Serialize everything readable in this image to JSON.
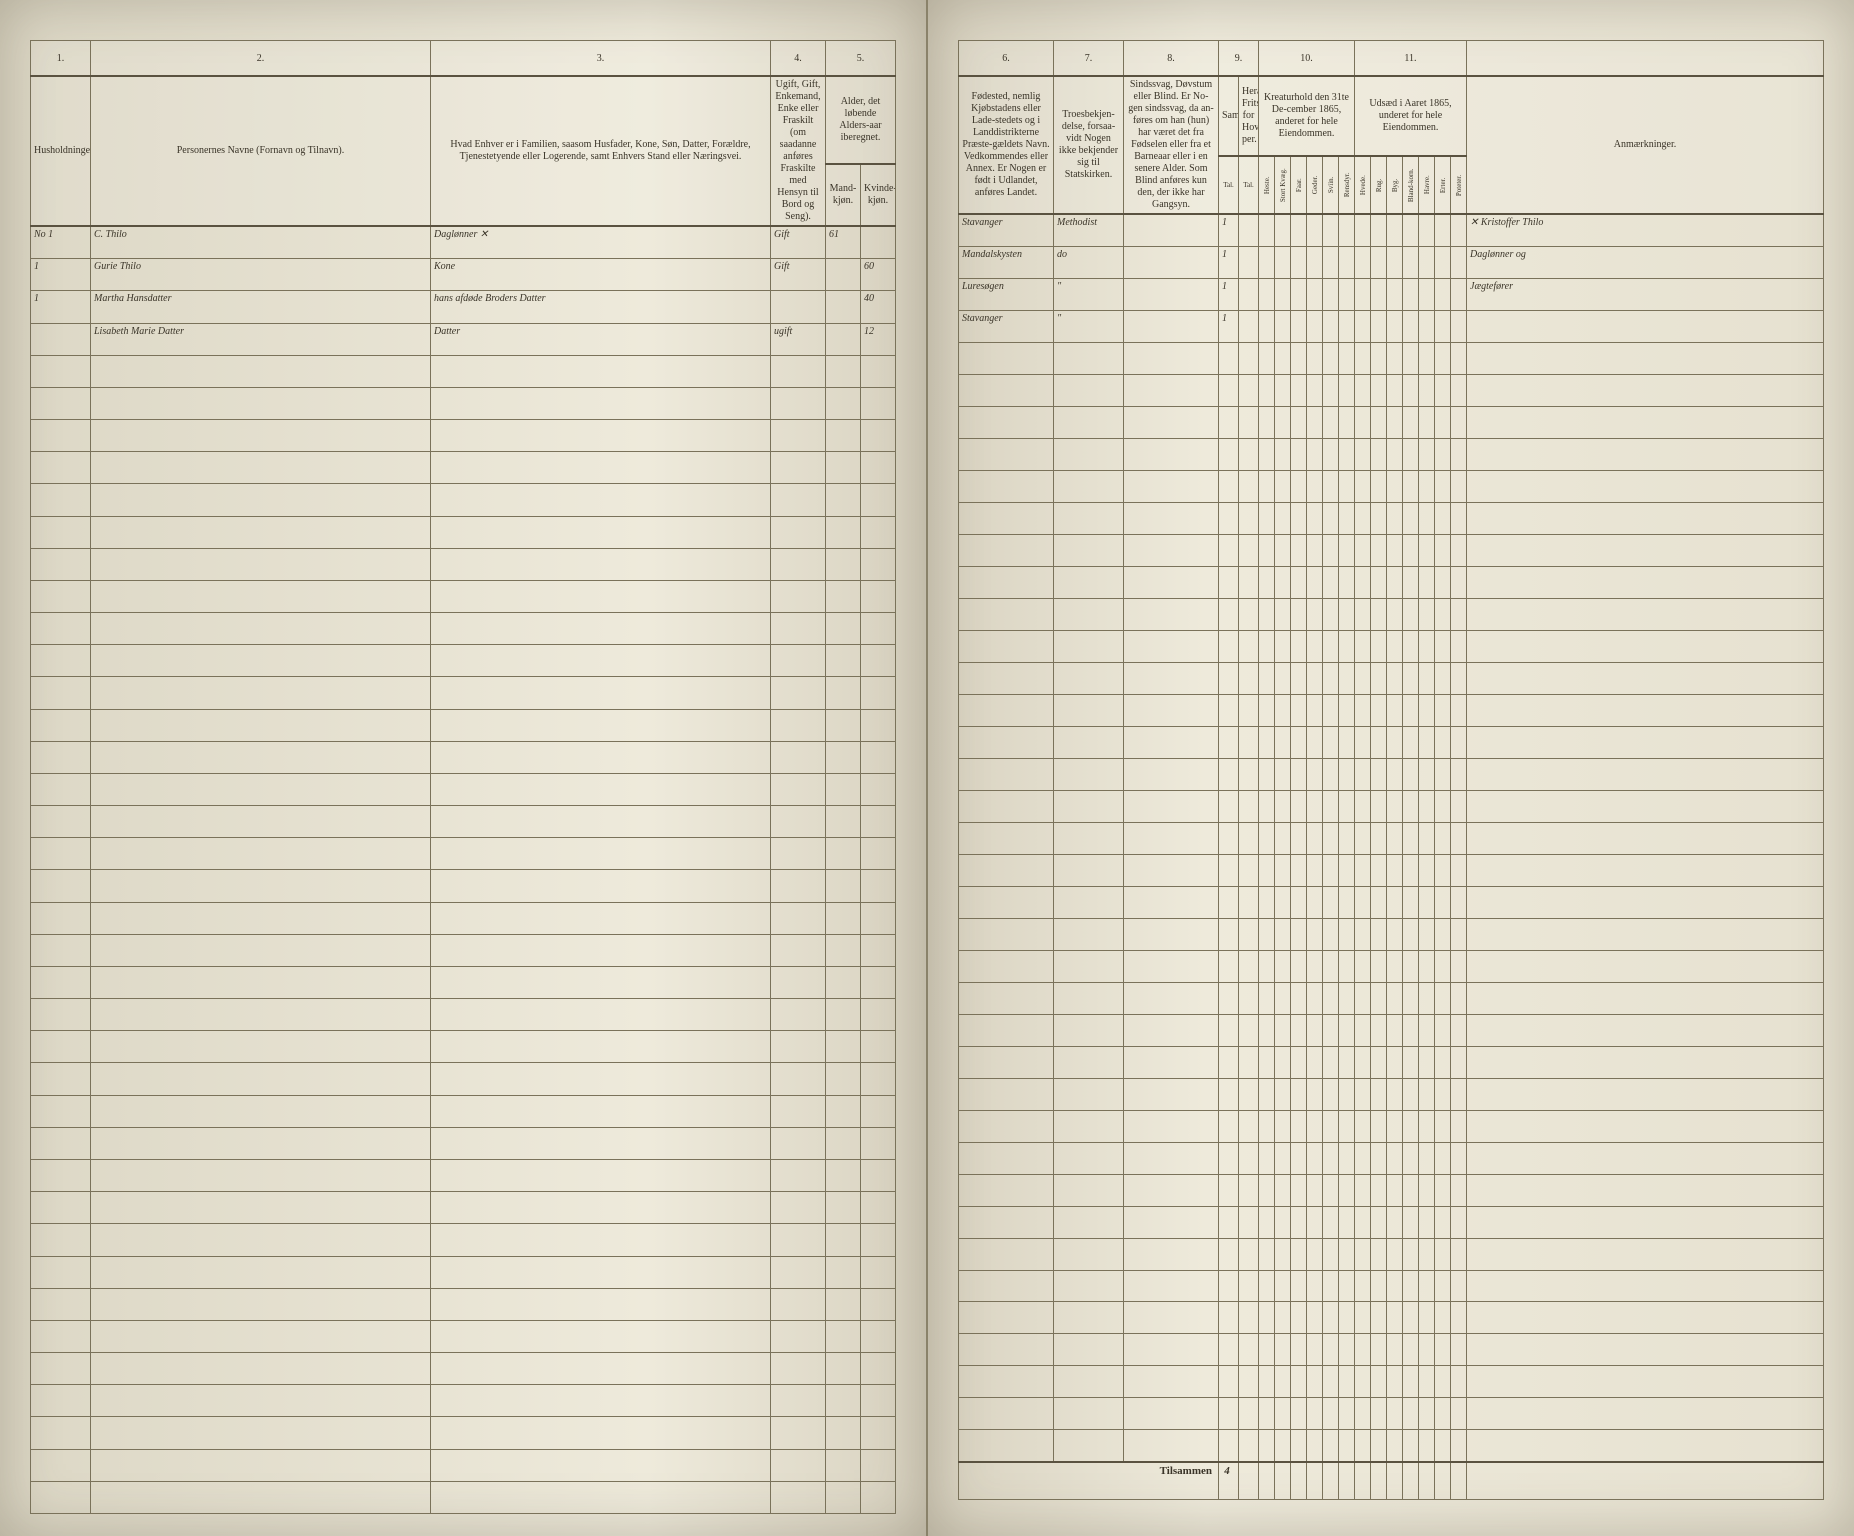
{
  "page_background": "#e8e4d4",
  "ink_color": "#4a4030",
  "rule_color": "#7a725a",
  "left": {
    "col_numbers": [
      "1.",
      "2.",
      "3.",
      "4.",
      "5."
    ],
    "headers": {
      "c1": "Husholdninger.",
      "c2": "Personernes Navne (Fornavn og Tilnavn).",
      "c3": "Hvad Enhver er i Familien, saasom Husfader, Kone, Søn, Datter, Forældre, Tjenestetyende eller Logerende, samt Enhvers Stand eller Næringsvei.",
      "c4": "Ugift, Gift, Enkemand, Enke eller Fraskilt (om saadanne anføres Fraskilte med Hensyn til Bord og Seng).",
      "c5a": "Alder, det løbende Alders-aar iberegnet.",
      "c5b": "Mand-kjøn.",
      "c5c": "Kvinde-kjøn."
    },
    "rows": [
      {
        "hh": "No 1",
        "name": "C. Thilo",
        "role": "Daglønner ✕",
        "status": "Gift",
        "age_m": "61",
        "age_f": ""
      },
      {
        "hh": "1",
        "name": "Gurie Thilo",
        "role": "Kone",
        "status": "Gift",
        "age_m": "",
        "age_f": "60"
      },
      {
        "hh": "1",
        "name": "Martha Hansdatter",
        "role": "hans afdøde Broders Datter",
        "status": "",
        "age_m": "",
        "age_f": "40"
      },
      {
        "hh": "",
        "name": "Lisabeth Marie Datter",
        "role": "Datter",
        "status": "ugift",
        "age_m": "",
        "age_f": "12"
      }
    ]
  },
  "right": {
    "col_numbers": [
      "6.",
      "7.",
      "8.",
      "9.",
      "10.",
      "11."
    ],
    "headers": {
      "c6": "Fødested, nemlig Kjøbstadens eller Lade-stedets og i Landdistrikterne Præste-gældets Navn. Vedkommendes eller Annex. Er Nogen er født i Udlandet, anføres Landet.",
      "c7": "Troesbekjen-delse, forsaa-vidt Nogen ikke bekjender sig til Statskirken.",
      "c8": "Sindssvag, Døvstum eller Blind. Er No-gen sindssvag, da an-føres om han (hun) har været det fra Fødselen eller fra et Barneaar eller i en senere Alder. Som Blind anføres kun den, der ikke har Gangsyn.",
      "c9a": "Samlet",
      "c9b": "Heraf Fritstaal. for Hoved-per.",
      "c10": "Kreaturhold den 31te De-cember 1865, anderet for hele Eiendommen.",
      "c10_sub": [
        "Heste.",
        "Stort Kvæg.",
        "Faar.",
        "Geder.",
        "Sviin.",
        "Rensdyr."
      ],
      "c11": "Udsæd i Aaret 1865, underet for hele Eiendommen.",
      "c11_sub": [
        "Hvede.",
        "Rug.",
        "Byg.",
        "Bland-korn.",
        "Havre.",
        "Erter.",
        "Poteter."
      ],
      "remarks": "Anmærkninger."
    },
    "rows": [
      {
        "birthplace": "Stavanger",
        "faith": "Methodist",
        "cond": "",
        "c9": "1",
        "remarks": "✕ Kristoffer Thilo"
      },
      {
        "birthplace": "Mandalskysten",
        "faith": "do",
        "cond": "",
        "c9": "1",
        "remarks": "Daglønner og"
      },
      {
        "birthplace": "Luresøgen",
        "faith": "\"",
        "cond": "",
        "c9": "1",
        "remarks": "Jægtefører"
      },
      {
        "birthplace": "Stavanger",
        "faith": "\"",
        "cond": "",
        "c9": "1",
        "remarks": ""
      }
    ],
    "tilsammen_label": "Tilsammen",
    "tilsammen_value": "4"
  },
  "blank_row_count": 36
}
